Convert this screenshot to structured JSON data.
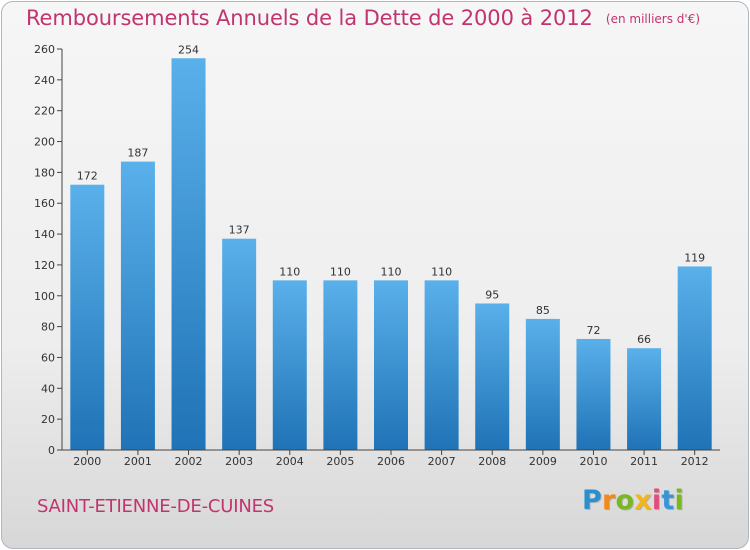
{
  "header": {
    "title": "Remboursements Annuels de la Dette de 2000 à 2012",
    "unit": "(en milliers d'€)"
  },
  "footer": {
    "commune": "SAINT-ETIENNE-DE-CUINES",
    "logo": "Proxiti"
  },
  "colors": {
    "accent": "#c2346f",
    "bar_top": "#5ab0ea",
    "bar_bottom": "#1f73b6",
    "axis": "#444444",
    "grid": "#d3d3d3"
  },
  "chart_data": {
    "type": "bar",
    "categories": [
      "2000",
      "2001",
      "2002",
      "2003",
      "2004",
      "2005",
      "2006",
      "2007",
      "2008",
      "2009",
      "2010",
      "2011",
      "2012"
    ],
    "values": [
      172,
      187,
      254,
      137,
      110,
      110,
      110,
      110,
      95,
      85,
      72,
      66,
      119
    ],
    "ylim": [
      0,
      260
    ],
    "yticks": [
      0,
      20,
      40,
      60,
      80,
      100,
      120,
      140,
      160,
      180,
      200,
      220,
      240,
      260
    ],
    "data_labels": [
      "172",
      "187",
      "254",
      "137",
      "110",
      "110",
      "110",
      "110",
      "95",
      "85",
      "72",
      "66",
      "119"
    ],
    "grid": false,
    "legend": "none"
  }
}
